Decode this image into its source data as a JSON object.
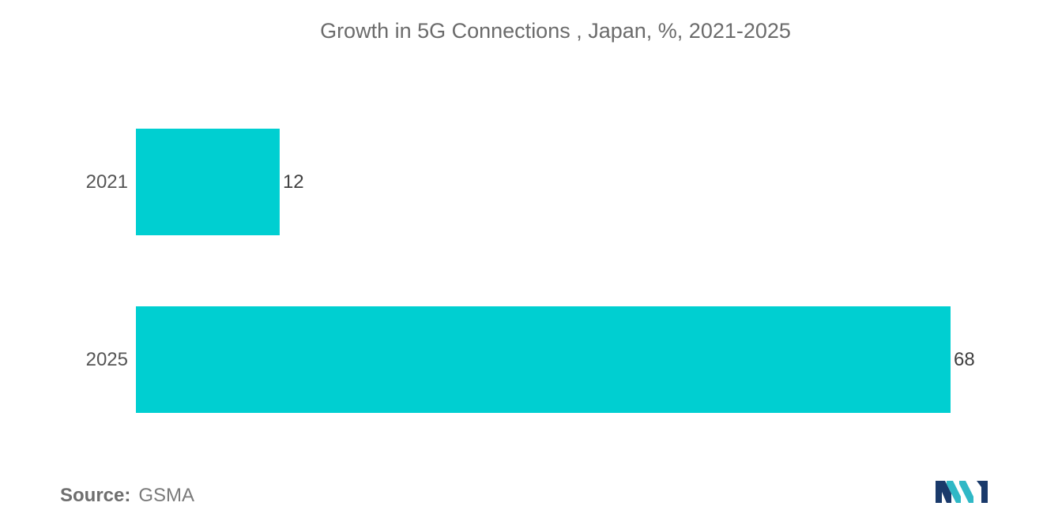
{
  "chart_data": {
    "type": "bar",
    "orientation": "horizontal",
    "title": "Growth in 5G Connections , Japan, %, 2021-2025",
    "categories": [
      "2021",
      "2025"
    ],
    "values": [
      12,
      68
    ],
    "xlim": [
      0,
      68
    ],
    "grid": false,
    "bar_color": "#00cfd1"
  },
  "source": {
    "label": "Source:",
    "value": "GSMA"
  },
  "logo": {
    "icon": "mordor-intelligence-logo",
    "colors": [
      "#1a3a6b",
      "#2fb8c6"
    ]
  }
}
